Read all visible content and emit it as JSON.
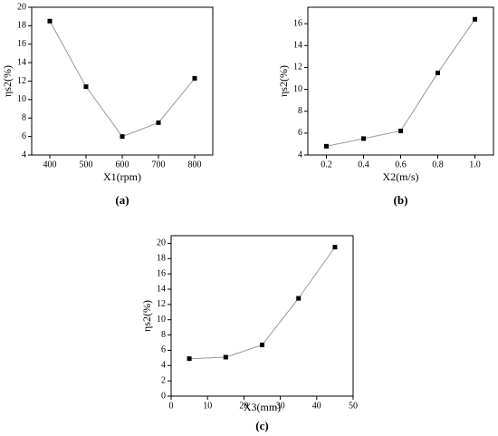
{
  "chart_data": [
    {
      "type": "line",
      "caption": "(a)",
      "x_label": "X1(rpm)",
      "y_label": "ηs2(%)",
      "x": [
        400,
        500,
        600,
        700,
        800
      ],
      "values": [
        18.5,
        11.4,
        6.0,
        7.5,
        12.3
      ],
      "xlim": [
        350,
        850
      ],
      "xticks": [
        400,
        500,
        600,
        700,
        800
      ],
      "ylim": [
        4,
        20
      ],
      "yticks": [
        4,
        6,
        8,
        10,
        12,
        14,
        16,
        18,
        20
      ],
      "line_color": "#999999",
      "marker_color": "#000000"
    },
    {
      "type": "line",
      "caption": "(b)",
      "x_label": "X2(m/s)",
      "y_label": "ηs2(%)",
      "x": [
        0.2,
        0.4,
        0.6,
        0.8,
        1.0
      ],
      "values": [
        4.8,
        5.5,
        6.2,
        11.5,
        16.4
      ],
      "xlim": [
        0.1,
        1.1
      ],
      "xticks": [
        0.2,
        0.4,
        0.6,
        0.8,
        {
          "value": 1.0,
          "label": "1.0"
        }
      ],
      "ylim": [
        4,
        17.5
      ],
      "yticks": [
        4,
        6,
        8,
        10,
        12,
        14,
        16
      ],
      "line_color": "#999999",
      "marker_color": "#000000"
    },
    {
      "type": "line",
      "caption": "(c)",
      "x_label": "X3(mm)",
      "y_label": "ηs2(%)",
      "x": [
        5,
        15,
        25,
        35,
        45
      ],
      "values": [
        4.9,
        5.1,
        6.7,
        12.8,
        19.5
      ],
      "xlim": [
        0,
        50
      ],
      "xticks": [
        0,
        10,
        20,
        30,
        40,
        50
      ],
      "ylim": [
        0,
        21
      ],
      "yticks": [
        0,
        2,
        4,
        6,
        8,
        10,
        12,
        14,
        16,
        18,
        20
      ],
      "line_color": "#999999",
      "marker_color": "#000000"
    }
  ]
}
